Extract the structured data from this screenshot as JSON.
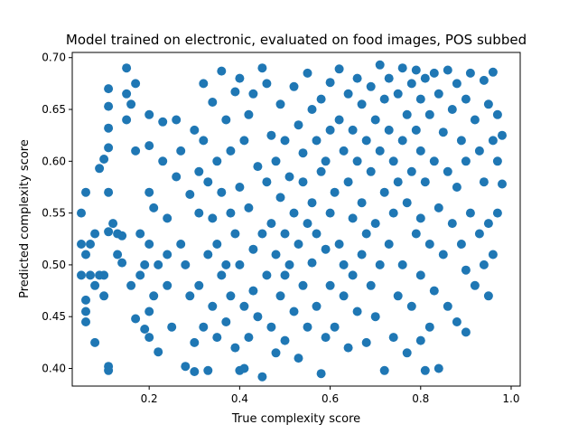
{
  "chart_data": {
    "type": "scatter",
    "title": "Model trained on electronic, evaluated on food images, POS subbed",
    "xlabel": "True complexity score",
    "ylabel": "Predicted complexity score",
    "xlim": [
      0.03,
      1.02
    ],
    "ylim": [
      0.383,
      0.705
    ],
    "xticks": [
      0.2,
      0.4,
      0.6,
      0.8,
      1.0
    ],
    "xtick_labels": [
      "0.2",
      "0.4",
      "0.6",
      "0.8",
      "1.0"
    ],
    "yticks": [
      0.4,
      0.45,
      0.5,
      0.55,
      0.6,
      0.65,
      0.7
    ],
    "ytick_labels": [
      "0.40",
      "0.45",
      "0.50",
      "0.55",
      "0.60",
      "0.65",
      "0.70"
    ],
    "grid": false,
    "marker_color": "#1f77b4",
    "series": [
      {
        "points": [
          [
            0.05,
            0.55
          ],
          [
            0.05,
            0.52
          ],
          [
            0.05,
            0.49
          ],
          [
            0.06,
            0.51
          ],
          [
            0.06,
            0.57
          ],
          [
            0.06,
            0.466
          ],
          [
            0.06,
            0.455
          ],
          [
            0.06,
            0.445
          ],
          [
            0.07,
            0.52
          ],
          [
            0.07,
            0.49
          ],
          [
            0.08,
            0.48
          ],
          [
            0.08,
            0.425
          ],
          [
            0.08,
            0.53
          ],
          [
            0.09,
            0.593
          ],
          [
            0.09,
            0.49
          ],
          [
            0.1,
            0.602
          ],
          [
            0.1,
            0.49
          ],
          [
            0.1,
            0.47
          ],
          [
            0.11,
            0.67
          ],
          [
            0.11,
            0.653
          ],
          [
            0.11,
            0.632
          ],
          [
            0.11,
            0.613
          ],
          [
            0.11,
            0.57
          ],
          [
            0.11,
            0.532
          ],
          [
            0.11,
            0.402
          ],
          [
            0.11,
            0.398
          ],
          [
            0.12,
            0.54
          ],
          [
            0.13,
            0.53
          ],
          [
            0.13,
            0.51
          ],
          [
            0.14,
            0.528
          ],
          [
            0.14,
            0.502
          ],
          [
            0.15,
            0.69
          ],
          [
            0.15,
            0.665
          ],
          [
            0.15,
            0.64
          ],
          [
            0.16,
            0.655
          ],
          [
            0.16,
            0.48
          ],
          [
            0.17,
            0.675
          ],
          [
            0.17,
            0.448
          ],
          [
            0.17,
            0.61
          ],
          [
            0.18,
            0.53
          ],
          [
            0.18,
            0.49
          ],
          [
            0.19,
            0.5
          ],
          [
            0.19,
            0.438
          ],
          [
            0.2,
            0.645
          ],
          [
            0.2,
            0.615
          ],
          [
            0.2,
            0.57
          ],
          [
            0.2,
            0.52
          ],
          [
            0.2,
            0.455
          ],
          [
            0.2,
            0.43
          ],
          [
            0.21,
            0.555
          ],
          [
            0.21,
            0.47
          ],
          [
            0.22,
            0.5
          ],
          [
            0.22,
            0.416
          ],
          [
            0.23,
            0.638
          ],
          [
            0.23,
            0.6
          ],
          [
            0.24,
            0.545
          ],
          [
            0.24,
            0.51
          ],
          [
            0.24,
            0.48
          ],
          [
            0.25,
            0.44
          ],
          [
            0.26,
            0.64
          ],
          [
            0.26,
            0.585
          ],
          [
            0.27,
            0.61
          ],
          [
            0.27,
            0.52
          ],
          [
            0.28,
            0.5
          ],
          [
            0.28,
            0.402
          ],
          [
            0.29,
            0.568
          ],
          [
            0.29,
            0.47
          ],
          [
            0.3,
            0.63
          ],
          [
            0.3,
            0.425
          ],
          [
            0.3,
            0.397
          ],
          [
            0.31,
            0.59
          ],
          [
            0.31,
            0.55
          ],
          [
            0.31,
            0.48
          ],
          [
            0.32,
            0.675
          ],
          [
            0.32,
            0.62
          ],
          [
            0.32,
            0.44
          ],
          [
            0.33,
            0.58
          ],
          [
            0.33,
            0.51
          ],
          [
            0.33,
            0.398
          ],
          [
            0.34,
            0.657
          ],
          [
            0.34,
            0.545
          ],
          [
            0.34,
            0.46
          ],
          [
            0.35,
            0.6
          ],
          [
            0.35,
            0.52
          ],
          [
            0.35,
            0.43
          ],
          [
            0.36,
            0.687
          ],
          [
            0.36,
            0.57
          ],
          [
            0.36,
            0.49
          ],
          [
            0.37,
            0.64
          ],
          [
            0.37,
            0.5
          ],
          [
            0.37,
            0.445
          ],
          [
            0.38,
            0.61
          ],
          [
            0.38,
            0.55
          ],
          [
            0.38,
            0.47
          ],
          [
            0.39,
            0.667
          ],
          [
            0.39,
            0.53
          ],
          [
            0.39,
            0.42
          ],
          [
            0.4,
            0.68
          ],
          [
            0.4,
            0.575
          ],
          [
            0.4,
            0.5
          ],
          [
            0.4,
            0.398
          ],
          [
            0.41,
            0.62
          ],
          [
            0.41,
            0.46
          ],
          [
            0.41,
            0.4
          ],
          [
            0.42,
            0.645
          ],
          [
            0.42,
            0.555
          ],
          [
            0.42,
            0.43
          ],
          [
            0.43,
            0.665
          ],
          [
            0.43,
            0.515
          ],
          [
            0.43,
            0.475
          ],
          [
            0.44,
            0.595
          ],
          [
            0.44,
            0.45
          ],
          [
            0.45,
            0.69
          ],
          [
            0.45,
            0.53
          ],
          [
            0.45,
            0.392
          ],
          [
            0.46,
            0.675
          ],
          [
            0.46,
            0.58
          ],
          [
            0.46,
            0.49
          ],
          [
            0.47,
            0.625
          ],
          [
            0.47,
            0.54
          ],
          [
            0.47,
            0.44
          ],
          [
            0.48,
            0.6
          ],
          [
            0.48,
            0.51
          ],
          [
            0.48,
            0.415
          ],
          [
            0.49,
            0.655
          ],
          [
            0.49,
            0.565
          ],
          [
            0.49,
            0.47
          ],
          [
            0.5,
            0.62
          ],
          [
            0.5,
            0.53
          ],
          [
            0.5,
            0.49
          ],
          [
            0.5,
            0.427
          ],
          [
            0.51,
            0.585
          ],
          [
            0.51,
            0.5
          ],
          [
            0.52,
            0.672
          ],
          [
            0.52,
            0.55
          ],
          [
            0.52,
            0.455
          ],
          [
            0.53,
            0.635
          ],
          [
            0.53,
            0.52
          ],
          [
            0.53,
            0.41
          ],
          [
            0.54,
            0.608
          ],
          [
            0.54,
            0.58
          ],
          [
            0.54,
            0.48
          ],
          [
            0.55,
            0.685
          ],
          [
            0.55,
            0.54
          ],
          [
            0.55,
            0.44
          ],
          [
            0.56,
            0.65
          ],
          [
            0.56,
            0.56
          ],
          [
            0.56,
            0.502
          ],
          [
            0.57,
            0.62
          ],
          [
            0.57,
            0.53
          ],
          [
            0.57,
            0.46
          ],
          [
            0.58,
            0.66
          ],
          [
            0.58,
            0.59
          ],
          [
            0.58,
            0.395
          ],
          [
            0.59,
            0.6
          ],
          [
            0.59,
            0.515
          ],
          [
            0.59,
            0.43
          ],
          [
            0.6,
            0.676
          ],
          [
            0.6,
            0.63
          ],
          [
            0.6,
            0.55
          ],
          [
            0.6,
            0.48
          ],
          [
            0.61,
            0.57
          ],
          [
            0.61,
            0.44
          ],
          [
            0.62,
            0.689
          ],
          [
            0.62,
            0.64
          ],
          [
            0.62,
            0.52
          ],
          [
            0.63,
            0.61
          ],
          [
            0.63,
            0.5
          ],
          [
            0.63,
            0.47
          ],
          [
            0.64,
            0.665
          ],
          [
            0.64,
            0.58
          ],
          [
            0.64,
            0.42
          ],
          [
            0.65,
            0.63
          ],
          [
            0.65,
            0.545
          ],
          [
            0.65,
            0.49
          ],
          [
            0.66,
            0.68
          ],
          [
            0.66,
            0.6
          ],
          [
            0.66,
            0.455
          ],
          [
            0.67,
            0.655
          ],
          [
            0.67,
            0.56
          ],
          [
            0.67,
            0.51
          ],
          [
            0.68,
            0.62
          ],
          [
            0.68,
            0.53
          ],
          [
            0.68,
            0.425
          ],
          [
            0.69,
            0.672
          ],
          [
            0.69,
            0.59
          ],
          [
            0.69,
            0.48
          ],
          [
            0.7,
            0.64
          ],
          [
            0.7,
            0.54
          ],
          [
            0.7,
            0.45
          ],
          [
            0.71,
            0.693
          ],
          [
            0.71,
            0.61
          ],
          [
            0.71,
            0.5
          ],
          [
            0.72,
            0.66
          ],
          [
            0.72,
            0.57
          ],
          [
            0.72,
            0.398
          ],
          [
            0.73,
            0.68
          ],
          [
            0.73,
            0.63
          ],
          [
            0.73,
            0.52
          ],
          [
            0.74,
            0.6
          ],
          [
            0.74,
            0.55
          ],
          [
            0.74,
            0.43
          ],
          [
            0.75,
            0.665
          ],
          [
            0.75,
            0.58
          ],
          [
            0.75,
            0.47
          ],
          [
            0.76,
            0.69
          ],
          [
            0.76,
            0.62
          ],
          [
            0.76,
            0.5
          ],
          [
            0.77,
            0.645
          ],
          [
            0.77,
            0.56
          ],
          [
            0.77,
            0.415
          ],
          [
            0.78,
            0.675
          ],
          [
            0.78,
            0.59
          ],
          [
            0.78,
            0.46
          ],
          [
            0.79,
            0.688
          ],
          [
            0.79,
            0.63
          ],
          [
            0.79,
            0.53
          ],
          [
            0.8,
            0.66
          ],
          [
            0.8,
            0.61
          ],
          [
            0.8,
            0.545
          ],
          [
            0.8,
            0.49
          ],
          [
            0.8,
            0.427
          ],
          [
            0.81,
            0.68
          ],
          [
            0.81,
            0.58
          ],
          [
            0.81,
            0.398
          ],
          [
            0.82,
            0.645
          ],
          [
            0.82,
            0.52
          ],
          [
            0.82,
            0.44
          ],
          [
            0.83,
            0.685
          ],
          [
            0.83,
            0.6
          ],
          [
            0.83,
            0.475
          ],
          [
            0.84,
            0.665
          ],
          [
            0.84,
            0.555
          ],
          [
            0.84,
            0.4
          ],
          [
            0.85,
            0.628
          ],
          [
            0.85,
            0.51
          ],
          [
            0.86,
            0.688
          ],
          [
            0.86,
            0.59
          ],
          [
            0.86,
            0.46
          ],
          [
            0.87,
            0.65
          ],
          [
            0.87,
            0.54
          ],
          [
            0.88,
            0.675
          ],
          [
            0.88,
            0.575
          ],
          [
            0.88,
            0.445
          ],
          [
            0.89,
            0.62
          ],
          [
            0.89,
            0.52
          ],
          [
            0.9,
            0.66
          ],
          [
            0.9,
            0.6
          ],
          [
            0.9,
            0.495
          ],
          [
            0.9,
            0.435
          ],
          [
            0.91,
            0.685
          ],
          [
            0.91,
            0.55
          ],
          [
            0.92,
            0.64
          ],
          [
            0.92,
            0.48
          ],
          [
            0.93,
            0.61
          ],
          [
            0.93,
            0.53
          ],
          [
            0.94,
            0.678
          ],
          [
            0.94,
            0.58
          ],
          [
            0.94,
            0.5
          ],
          [
            0.95,
            0.655
          ],
          [
            0.95,
            0.54
          ],
          [
            0.95,
            0.47
          ],
          [
            0.96,
            0.686
          ],
          [
            0.96,
            0.62
          ],
          [
            0.96,
            0.51
          ],
          [
            0.97,
            0.645
          ],
          [
            0.97,
            0.6
          ],
          [
            0.97,
            0.55
          ],
          [
            0.98,
            0.625
          ],
          [
            0.98,
            0.578
          ]
        ]
      }
    ]
  }
}
